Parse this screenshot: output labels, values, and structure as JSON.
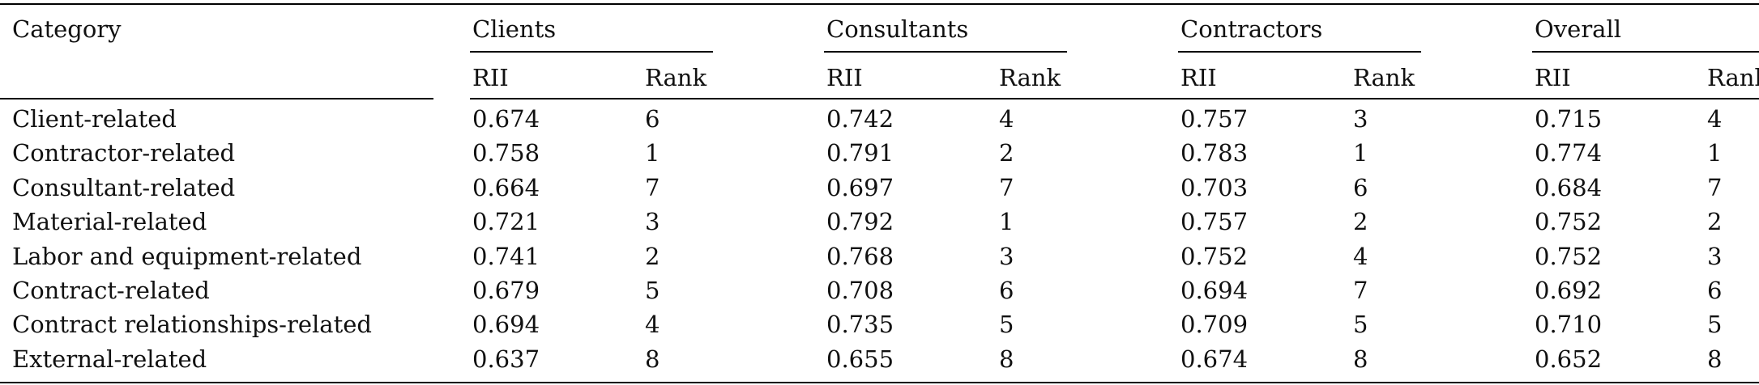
{
  "table": {
    "header": {
      "category": "Category",
      "groups": [
        "Clients",
        "Consultants",
        "Contractors",
        "Overall"
      ],
      "sub_rii": "RII",
      "sub_rank": "Rank"
    },
    "rows": [
      {
        "category": "Client-related",
        "values": [
          "0.674",
          "6",
          "0.742",
          "4",
          "0.757",
          "3",
          "0.715",
          "4"
        ]
      },
      {
        "category": "Contractor-related",
        "values": [
          "0.758",
          "1",
          "0.791",
          "2",
          "0.783",
          "1",
          "0.774",
          "1"
        ]
      },
      {
        "category": "Consultant-related",
        "values": [
          "0.664",
          "7",
          "0.697",
          "7",
          "0.703",
          "6",
          "0.684",
          "7"
        ]
      },
      {
        "category": "Material-related",
        "values": [
          "0.721",
          "3",
          "0.792",
          "1",
          "0.757",
          "2",
          "0.752",
          "2"
        ]
      },
      {
        "category": "Labor and equipment-related",
        "values": [
          "0.741",
          "2",
          "0.768",
          "3",
          "0.752",
          "4",
          "0.752",
          "3"
        ]
      },
      {
        "category": "Contract-related",
        "values": [
          "0.679",
          "5",
          "0.708",
          "6",
          "0.694",
          "7",
          "0.692",
          "6"
        ]
      },
      {
        "category": "Contract relationships-related",
        "values": [
          "0.694",
          "4",
          "0.735",
          "5",
          "0.709",
          "5",
          "0.710",
          "5"
        ]
      },
      {
        "category": "External-related",
        "values": [
          "0.637",
          "8",
          "0.655",
          "8",
          "0.674",
          "8",
          "0.652",
          "8"
        ]
      }
    ]
  }
}
